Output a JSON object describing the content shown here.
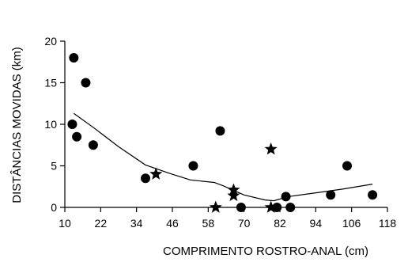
{
  "chart_data": {
    "type": "scatter",
    "title": "",
    "xlabel": "COMPRIMENTO ROSTRO-ANAL (cm)",
    "ylabel": "DISTÂNCIAS MOVIDAS (km)",
    "xlim": [
      10,
      118
    ],
    "ylim": [
      0,
      20
    ],
    "xticks": [
      10,
      22,
      34,
      46,
      58,
      70,
      82,
      94,
      106,
      118
    ],
    "yticks": [
      0,
      5,
      10,
      15,
      20
    ],
    "grid": false,
    "legend": "none",
    "series": [
      {
        "marker": "circle",
        "points": [
          [
            13,
            18
          ],
          [
            17,
            15
          ],
          [
            12.5,
            10
          ],
          [
            14,
            8.5
          ],
          [
            19.5,
            7.5
          ],
          [
            37,
            3.5
          ],
          [
            53,
            5
          ],
          [
            62,
            9.2
          ],
          [
            69,
            0
          ],
          [
            81,
            0
          ],
          [
            84,
            1.3
          ],
          [
            85.5,
            0
          ],
          [
            99,
            1.5
          ],
          [
            104.5,
            5
          ],
          [
            113,
            1.5
          ]
        ]
      },
      {
        "marker": "star",
        "points": [
          [
            40.5,
            4
          ],
          [
            60.5,
            0
          ],
          [
            66.5,
            2.1
          ],
          [
            66.5,
            1.4
          ],
          [
            79,
            7
          ],
          [
            79,
            0
          ]
        ]
      },
      {
        "marker": "none",
        "line": true,
        "points": [
          [
            13,
            11.3
          ],
          [
            20,
            9.5
          ],
          [
            28,
            7.3
          ],
          [
            37,
            5.1
          ],
          [
            45,
            4.1
          ],
          [
            52,
            3.3
          ],
          [
            60,
            3.0
          ],
          [
            63,
            2.6
          ],
          [
            70,
            1.5
          ],
          [
            77,
            0.9
          ],
          [
            80,
            0.8
          ],
          [
            85,
            1.3
          ],
          [
            95,
            1.8
          ],
          [
            103,
            2.2
          ],
          [
            113,
            2.8
          ]
        ]
      }
    ]
  }
}
